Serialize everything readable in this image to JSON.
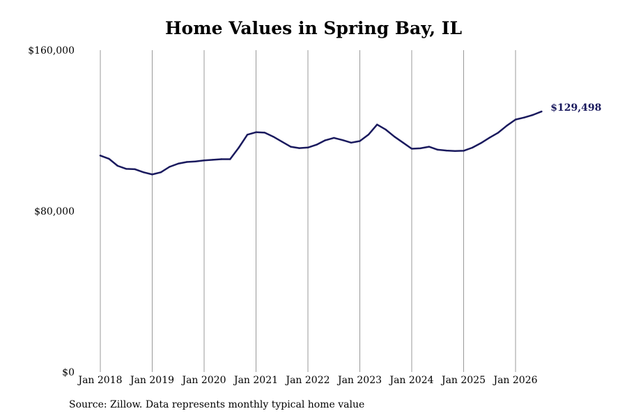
{
  "chart_data": {
    "type": "line",
    "title": "Home Values in Spring Bay, IL",
    "xlabel": "",
    "ylabel": "",
    "ylim": [
      0,
      160000
    ],
    "y_ticks": [
      0,
      80000,
      160000
    ],
    "y_tick_labels": [
      "$0",
      "$80,000",
      "$160,000"
    ],
    "x_ticks": [
      "2018-01",
      "2019-01",
      "2020-01",
      "2021-01",
      "2022-01",
      "2023-01",
      "2024-01",
      "2025-01",
      "2026-01"
    ],
    "x_tick_labels": [
      "Jan 2018",
      "Jan 2019",
      "Jan 2020",
      "Jan 2021",
      "Jan 2022",
      "Jan 2023",
      "Jan 2024",
      "Jan 2025",
      "Jan 2026"
    ],
    "grid": "vertical",
    "line_color": "#1a1a5e",
    "end_label": "$129,498",
    "series": [
      {
        "x": [
          "2018-01",
          "2018-03",
          "2018-05",
          "2018-07",
          "2018-09",
          "2018-11",
          "2019-01",
          "2019-03",
          "2019-05",
          "2019-07",
          "2019-09",
          "2019-11",
          "2020-01",
          "2020-03",
          "2020-05",
          "2020-07",
          "2020-09",
          "2020-11",
          "2021-01",
          "2021-03",
          "2021-05",
          "2021-07",
          "2021-09",
          "2021-11",
          "2022-01",
          "2022-03",
          "2022-05",
          "2022-07",
          "2022-09",
          "2022-11",
          "2023-01",
          "2023-03",
          "2023-05",
          "2023-07",
          "2023-09",
          "2023-11",
          "2024-01",
          "2024-03",
          "2024-05",
          "2024-07",
          "2024-09",
          "2024-11",
          "2025-01",
          "2025-03",
          "2025-05",
          "2025-07",
          "2025-09",
          "2025-11",
          "2026-01",
          "2026-03",
          "2026-05",
          "2026-07"
        ],
        "values": [
          107600,
          106000,
          102500,
          101000,
          100800,
          99300,
          98200,
          99300,
          102000,
          103600,
          104400,
          104700,
          105200,
          105500,
          105800,
          105800,
          111500,
          118000,
          119200,
          119000,
          117000,
          114500,
          112000,
          111300,
          111600,
          113000,
          115200,
          116400,
          115300,
          114000,
          114800,
          118000,
          123000,
          120500,
          117000,
          114000,
          111000,
          111200,
          112000,
          110500,
          110100,
          109900,
          110000,
          111500,
          113800,
          116500,
          119000,
          122500,
          125500,
          126500,
          127800,
          129498
        ]
      }
    ]
  },
  "source_text": "Source: Zillow. Data represents monthly typical home value"
}
